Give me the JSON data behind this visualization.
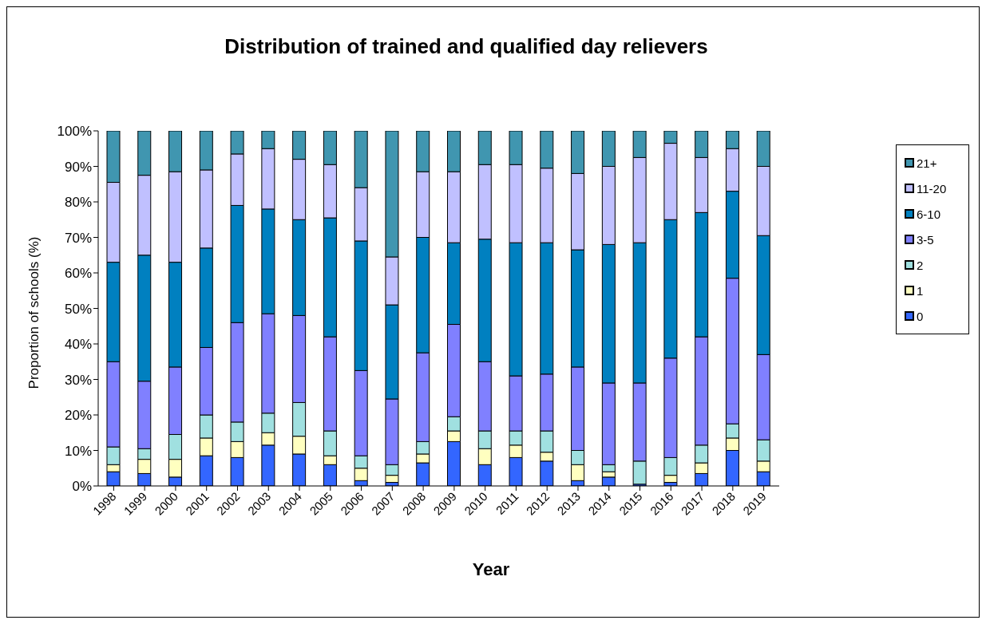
{
  "chart_data": {
    "type": "bar",
    "title": "Distribution of trained and qualified day relievers",
    "xlabel": "Year",
    "ylabel": "Proportion of schools (%)",
    "categories": [
      "1998",
      "1999",
      "2000",
      "2001",
      "2002",
      "2003",
      "2004",
      "2005",
      "2006",
      "2007",
      "2008",
      "2009",
      "2010",
      "2011",
      "2012",
      "2013",
      "2014",
      "2015",
      "2016",
      "2017",
      "2018",
      "2019"
    ],
    "stacked": true,
    "series": [
      {
        "name": "0",
        "color": "#3366ff",
        "values": [
          4,
          3.5,
          2.5,
          8.5,
          8,
          11.5,
          9,
          6,
          1.5,
          1,
          6.5,
          12.5,
          6,
          8,
          7,
          1.5,
          2.5,
          0.5,
          1,
          3.5,
          10,
          4
        ]
      },
      {
        "name": "1",
        "color": "#ffffc0",
        "values": [
          2,
          4,
          5,
          5,
          4.5,
          3.5,
          5,
          2.5,
          3.5,
          2,
          2.5,
          3,
          4.5,
          3.5,
          2.5,
          4.5,
          1.5,
          0,
          2,
          3,
          3.5,
          3
        ]
      },
      {
        "name": "2",
        "color": "#a0e0e0",
        "values": [
          5,
          3,
          7,
          6.5,
          5.5,
          5.5,
          9.5,
          7,
          3.5,
          3,
          3.5,
          4,
          5,
          4,
          6,
          4,
          2,
          6.5,
          5,
          5,
          4,
          6
        ]
      },
      {
        "name": "3-5",
        "color": "#8080ff",
        "values": [
          24,
          19,
          19,
          19,
          28,
          28,
          24.5,
          26.5,
          24,
          18.5,
          25,
          26,
          19.5,
          15.5,
          16,
          23.5,
          23,
          22,
          28,
          30.5,
          41,
          24
        ]
      },
      {
        "name": "6-10",
        "color": "#0080c0",
        "values": [
          28,
          35.5,
          29.5,
          28,
          33,
          29.5,
          27,
          33.5,
          36.5,
          26.5,
          32.5,
          23,
          34.5,
          37.5,
          37,
          33,
          39,
          39.5,
          39,
          35,
          24.5,
          33.5
        ]
      },
      {
        "name": "11-20",
        "color": "#c0c0ff",
        "values": [
          22.5,
          22.5,
          25.5,
          22,
          14.5,
          17,
          17,
          15,
          15,
          13.5,
          18.5,
          20,
          21,
          22,
          21,
          21.5,
          22,
          24,
          21.5,
          15.5,
          12,
          19.5
        ]
      },
      {
        "name": "21+",
        "color": "#4096b0",
        "values": [
          14.5,
          12.5,
          11.5,
          11,
          6.5,
          5,
          8,
          9.5,
          16,
          35.5,
          11.5,
          11.5,
          9.5,
          9.5,
          10.5,
          12,
          10,
          7.5,
          3.5,
          7.5,
          5,
          10
        ]
      }
    ],
    "ylim": [
      0,
      100
    ],
    "yticks": [
      {
        "value": 0,
        "label": "0%"
      },
      {
        "value": 10,
        "label": "10%"
      },
      {
        "value": 20,
        "label": "20%"
      },
      {
        "value": 30,
        "label": "30%"
      },
      {
        "value": 40,
        "label": "40%"
      },
      {
        "value": 50,
        "label": "50%"
      },
      {
        "value": 60,
        "label": "60%"
      },
      {
        "value": 70,
        "label": "70%"
      },
      {
        "value": 80,
        "label": "80%"
      },
      {
        "value": 90,
        "label": "90%"
      },
      {
        "value": 100,
        "label": "100%"
      }
    ],
    "grid": false,
    "legend": "right"
  }
}
